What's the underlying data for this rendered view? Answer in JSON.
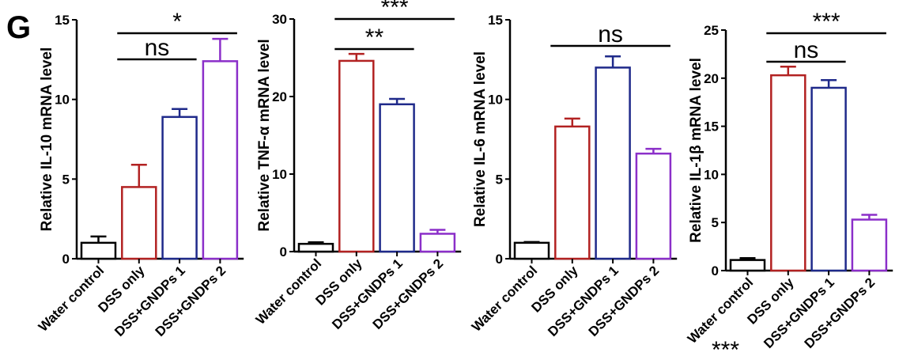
{
  "panel_letter": "G",
  "colors": {
    "Water control": "#000000",
    "DSS only": "#b22222",
    "DSS+GNDPs 1": "#1f2a8a",
    "DSS+GNDPs 2": "#8b2fc9"
  },
  "chart_data": [
    {
      "type": "bar",
      "ylabel": "Relative IL-10 mRNA level",
      "ylim": [
        0,
        15
      ],
      "yticks": [
        0,
        5,
        10,
        15
      ],
      "categories": [
        "Water control",
        "DSS only",
        "DSS+GNDPs 1",
        "DSS+GNDPs 2"
      ],
      "values": [
        1.0,
        4.5,
        8.9,
        12.4
      ],
      "errors": [
        0.4,
        1.4,
        0.5,
        1.4
      ],
      "significance": [
        {
          "from": 1,
          "to": 2,
          "label": "ns"
        },
        {
          "from": 1,
          "to": 3,
          "label": "*"
        }
      ]
    },
    {
      "type": "bar",
      "ylabel": "Relative TNF-α mRNA level",
      "ylim": [
        0,
        30
      ],
      "yticks": [
        0,
        10,
        20,
        30
      ],
      "categories": [
        "Water control",
        "DSS only",
        "DSS+GNDPs 1",
        "DSS+GNDPs 2"
      ],
      "values": [
        1.0,
        24.6,
        19.0,
        2.3
      ],
      "errors": [
        0.2,
        0.9,
        0.7,
        0.5
      ],
      "significance": [
        {
          "from": 1,
          "to": 2,
          "label": "**"
        },
        {
          "from": 1,
          "to": 3,
          "label": "***"
        }
      ]
    },
    {
      "type": "bar",
      "ylabel": "Relative IL-6 mRNA level",
      "ylim": [
        0,
        15
      ],
      "yticks": [
        0,
        5,
        10,
        15
      ],
      "categories": [
        "Water control",
        "DSS only",
        "DSS+GNDPs 1",
        "DSS+GNDPs 2"
      ],
      "values": [
        1.0,
        8.3,
        12.0,
        6.6
      ],
      "errors": [
        0.05,
        0.5,
        0.7,
        0.3
      ],
      "significance": [
        {
          "from": 1,
          "to": 3,
          "label": "ns"
        }
      ]
    },
    {
      "type": "bar",
      "ylabel": "Relative IL-1β mRNA level",
      "ylim": [
        0,
        25
      ],
      "yticks": [
        0,
        5,
        10,
        15,
        20,
        25
      ],
      "categories": [
        "Water control",
        "DSS only",
        "DSS+GNDPs 1",
        "DSS+GNDPs 2"
      ],
      "values": [
        1.1,
        20.3,
        19.0,
        5.3
      ],
      "errors": [
        0.2,
        0.9,
        0.8,
        0.5
      ],
      "significance": [
        {
          "from": 1,
          "to": 2,
          "label": "ns"
        },
        {
          "from": 1,
          "to": 3,
          "label": "***"
        }
      ],
      "extra_annotation": "***"
    }
  ]
}
